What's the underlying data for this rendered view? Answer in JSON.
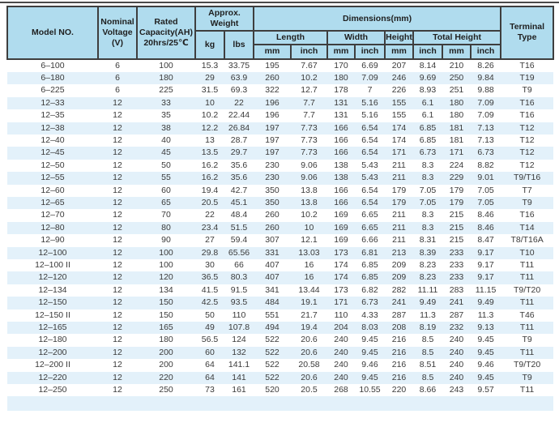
{
  "table": {
    "header": {
      "model": "Model NO.",
      "voltage": "Nominal\nVoltage\n(V)",
      "capacity": "Rated\nCapacity(AH)\n20hrs/25℃",
      "weight": "Approx.\nWeight",
      "kg": "kg",
      "lbs": "lbs",
      "dimensions": "Dimensions(mm)",
      "length": "Length",
      "width": "Width",
      "height": "Height",
      "total_height": "Total Height",
      "units": {
        "mm": "mm",
        "inch": "inch"
      },
      "terminal": "Terminal\nType"
    },
    "rows": [
      [
        "6–100",
        "6",
        "100",
        "15.3",
        "33.75",
        "195",
        "7.67",
        "170",
        "6.69",
        "207",
        "8.14",
        "210",
        "8.26",
        "T16"
      ],
      [
        "6–180",
        "6",
        "180",
        "29",
        "63.9",
        "260",
        "10.2",
        "180",
        "7.09",
        "246",
        "9.69",
        "250",
        "9.84",
        "T19"
      ],
      [
        "6–225",
        "6",
        "225",
        "31.5",
        "69.3",
        "322",
        "12.7",
        "178",
        "7",
        "226",
        "8.93",
        "251",
        "9.88",
        "T9"
      ],
      [
        "12–33",
        "12",
        "33",
        "10",
        "22",
        "196",
        "7.7",
        "131",
        "5.16",
        "155",
        "6.1",
        "180",
        "7.09",
        "T16"
      ],
      [
        "12–35",
        "12",
        "35",
        "10.2",
        "22.44",
        "196",
        "7.7",
        "131",
        "5.16",
        "155",
        "6.1",
        "180",
        "7.09",
        "T16"
      ],
      [
        "12–38",
        "12",
        "38",
        "12.2",
        "26.84",
        "197",
        "7.73",
        "166",
        "6.54",
        "174",
        "6.85",
        "181",
        "7.13",
        "T12"
      ],
      [
        "12–40",
        "12",
        "40",
        "13",
        "28.7",
        "197",
        "7.73",
        "166",
        "6.54",
        "174",
        "6.85",
        "181",
        "7.13",
        "T12"
      ],
      [
        "12–45",
        "12",
        "45",
        "13.5",
        "29.7",
        "197",
        "7.73",
        "166",
        "6.54",
        "171",
        "6.73",
        "171",
        "6.73",
        "T12"
      ],
      [
        "12–50",
        "12",
        "50",
        "16.2",
        "35.6",
        "230",
        "9.06",
        "138",
        "5.43",
        "211",
        "8.3",
        "224",
        "8.82",
        "T12"
      ],
      [
        "12–55",
        "12",
        "55",
        "16.2",
        "35.6",
        "230",
        "9.06",
        "138",
        "5.43",
        "211",
        "8.3",
        "229",
        "9.01",
        "T9/T16"
      ],
      [
        "12–60",
        "12",
        "60",
        "19.4",
        "42.7",
        "350",
        "13.8",
        "166",
        "6.54",
        "179",
        "7.05",
        "179",
        "7.05",
        "T7"
      ],
      [
        "12–65",
        "12",
        "65",
        "20.5",
        "45.1",
        "350",
        "13.8",
        "166",
        "6.54",
        "179",
        "7.05",
        "179",
        "7.05",
        "T9"
      ],
      [
        "12–70",
        "12",
        "70",
        "22",
        "48.4",
        "260",
        "10.2",
        "169",
        "6.65",
        "211",
        "8.3",
        "215",
        "8.46",
        "T16"
      ],
      [
        "12–80",
        "12",
        "80",
        "23.4",
        "51.5",
        "260",
        "10",
        "169",
        "6.65",
        "211",
        "8.3",
        "215",
        "8.46",
        "T14"
      ],
      [
        "12–90",
        "12",
        "90",
        "27",
        "59.4",
        "307",
        "12.1",
        "169",
        "6.66",
        "211",
        "8.31",
        "215",
        "8.47",
        "T8/T16A"
      ],
      [
        "12–100",
        "12",
        "100",
        "29.8",
        "65.56",
        "331",
        "13.03",
        "173",
        "6.81",
        "213",
        "8.39",
        "233",
        "9.17",
        "T10"
      ],
      [
        "12–100 II",
        "12",
        "100",
        "30",
        "66",
        "407",
        "16",
        "174",
        "6.85",
        "209",
        "8.23",
        "233",
        "9.17",
        "T11"
      ],
      [
        "12–120",
        "12",
        "120",
        "36.5",
        "80.3",
        "407",
        "16",
        "174",
        "6.85",
        "209",
        "8.23",
        "233",
        "9.17",
        "T11"
      ],
      [
        "12–134",
        "12",
        "134",
        "41.5",
        "91.5",
        "341",
        "13.44",
        "173",
        "6.82",
        "282",
        "11.11",
        "283",
        "11.15",
        "T9/T20"
      ],
      [
        "12–150",
        "12",
        "150",
        "42.5",
        "93.5",
        "484",
        "19.1",
        "171",
        "6.73",
        "241",
        "9.49",
        "241",
        "9.49",
        "T11"
      ],
      [
        "12–150 II",
        "12",
        "150",
        "50",
        "110",
        "551",
        "21.7",
        "110",
        "4.33",
        "287",
        "11.3",
        "287",
        "11.3",
        "T46"
      ],
      [
        "12–165",
        "12",
        "165",
        "49",
        "107.8",
        "494",
        "19.4",
        "204",
        "8.03",
        "208",
        "8.19",
        "232",
        "9.13",
        "T11"
      ],
      [
        "12–180",
        "12",
        "180",
        "56.5",
        "124",
        "522",
        "20.6",
        "240",
        "9.45",
        "216",
        "8.5",
        "240",
        "9.45",
        "T9"
      ],
      [
        "12–200",
        "12",
        "200",
        "60",
        "132",
        "522",
        "20.6",
        "240",
        "9.45",
        "216",
        "8.5",
        "240",
        "9.45",
        "T11"
      ],
      [
        "12–200 II",
        "12",
        "200",
        "64",
        "141.1",
        "522",
        "20.58",
        "240",
        "9.46",
        "216",
        "8.51",
        "240",
        "9.46",
        "T9/T20"
      ],
      [
        "12–220",
        "12",
        "220",
        "64",
        "141",
        "522",
        "20.6",
        "240",
        "9.45",
        "216",
        "8.5",
        "240",
        "9.45",
        "T9"
      ],
      [
        "12–250",
        "12",
        "250",
        "73",
        "161",
        "520",
        "20.5",
        "268",
        "10.55",
        "220",
        "8.66",
        "243",
        "9.57",
        "T11"
      ]
    ]
  },
  "colors": {
    "header_bg": "#b0dcee",
    "stripe_row": "#e3f1fa",
    "border": "#3e3e3e",
    "top_rule": "#4a4a4a",
    "body_text": "#3a3a3a"
  }
}
